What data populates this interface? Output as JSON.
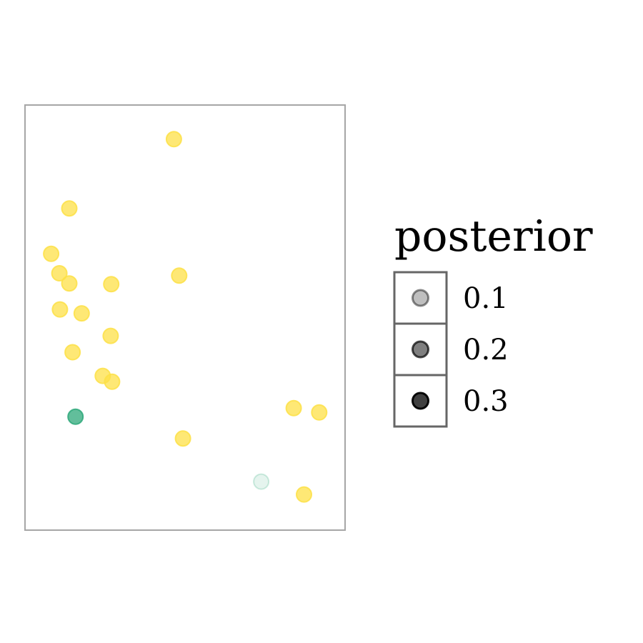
{
  "chart_data": {
    "type": "scatter",
    "title": "",
    "xlabel": "",
    "ylabel": "",
    "grid": false,
    "axes_visible": false,
    "xlim": [
      0,
      100
    ],
    "ylim": [
      0,
      100
    ],
    "legend": {
      "title": "posterior",
      "placement": "right",
      "entries": [
        {
          "label": "0.1",
          "value": 0.1,
          "color": "#000000"
        },
        {
          "label": "0.2",
          "value": 0.2,
          "color": "#000000"
        },
        {
          "label": "0.3",
          "value": 0.3,
          "color": "#000000"
        }
      ]
    },
    "series": [
      {
        "color": "#FDE047",
        "points": [
          {
            "x": 46.2,
            "y": 95.8,
            "posterior": 0.3
          },
          {
            "x": 10.5,
            "y": 78.0,
            "posterior": 0.3
          },
          {
            "x": 4.3,
            "y": 66.3,
            "posterior": 0.3
          },
          {
            "x": 7.1,
            "y": 61.3,
            "posterior": 0.3
          },
          {
            "x": 10.5,
            "y": 58.7,
            "posterior": 0.3
          },
          {
            "x": 24.8,
            "y": 58.5,
            "posterior": 0.3
          },
          {
            "x": 48.0,
            "y": 60.7,
            "posterior": 0.3
          },
          {
            "x": 7.3,
            "y": 52.0,
            "posterior": 0.3
          },
          {
            "x": 14.7,
            "y": 51.0,
            "posterior": 0.3
          },
          {
            "x": 24.6,
            "y": 45.2,
            "posterior": 0.3
          },
          {
            "x": 11.6,
            "y": 41.0,
            "posterior": 0.3
          },
          {
            "x": 21.9,
            "y": 34.9,
            "posterior": 0.3
          },
          {
            "x": 25.1,
            "y": 33.4,
            "posterior": 0.3
          },
          {
            "x": 87.1,
            "y": 26.6,
            "posterior": 0.3
          },
          {
            "x": 95.8,
            "y": 25.5,
            "posterior": 0.3
          },
          {
            "x": 49.3,
            "y": 18.8,
            "posterior": 0.3
          },
          {
            "x": 90.6,
            "y": 4.4,
            "posterior": 0.3
          }
        ]
      },
      {
        "color": "#2EA87A",
        "points": [
          {
            "x": 12.6,
            "y": 24.4,
            "posterior": 0.3
          },
          {
            "x": 76.0,
            "y": 7.7,
            "posterior": 0.05
          }
        ]
      }
    ]
  }
}
